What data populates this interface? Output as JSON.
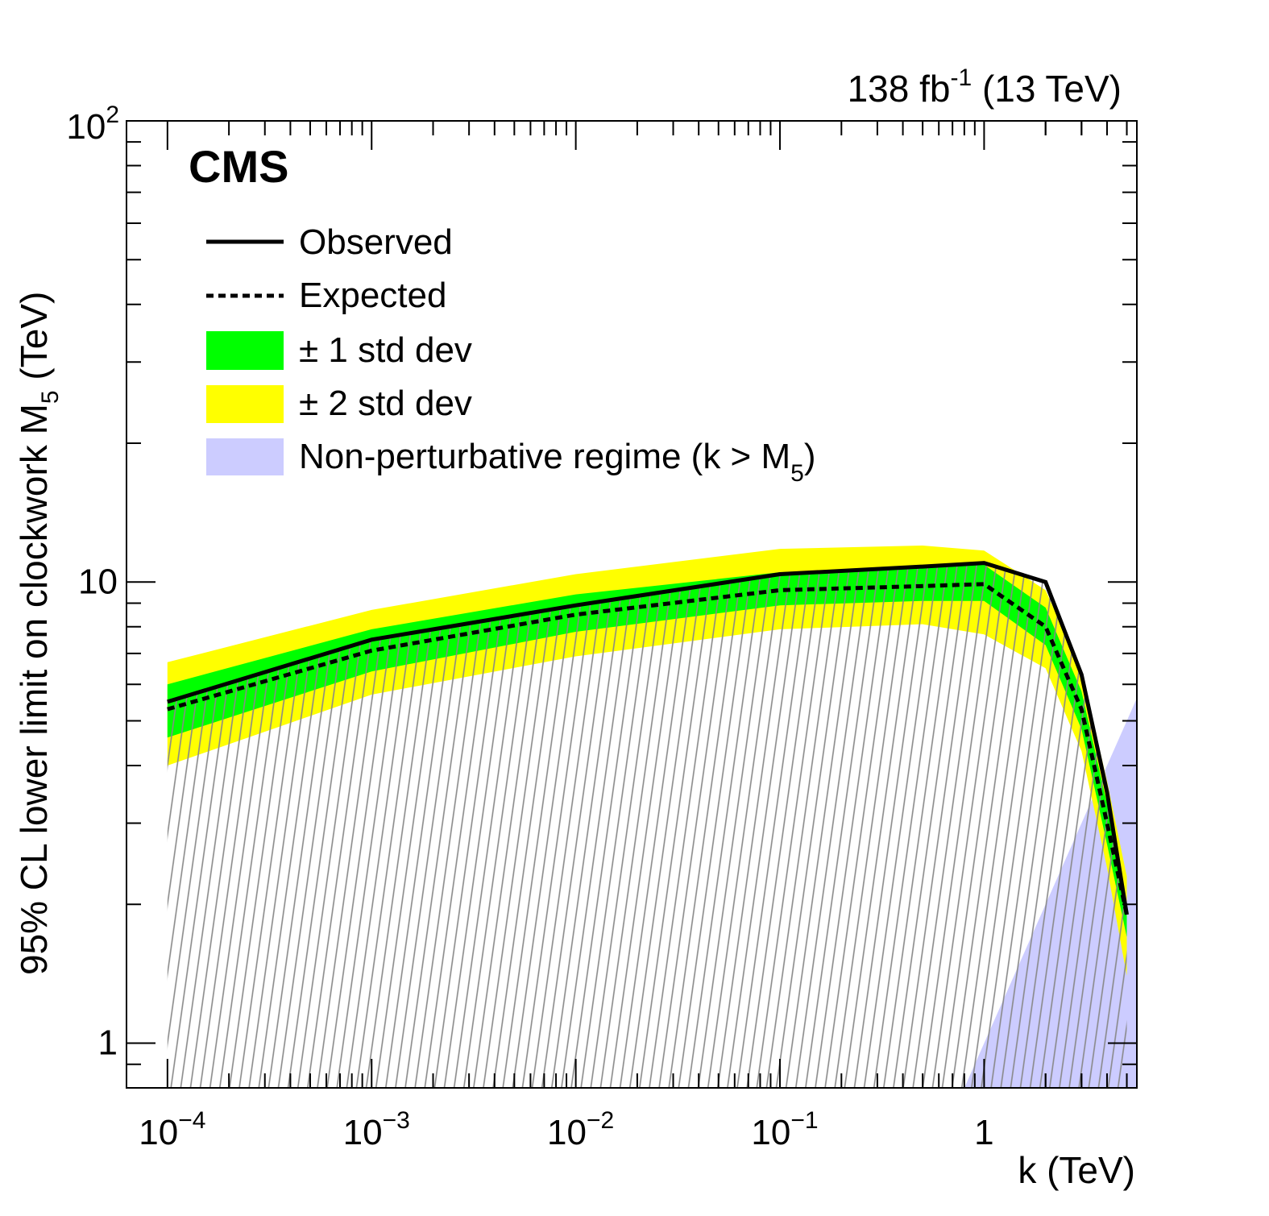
{
  "lumi": {
    "main": "138 fb",
    "sup": "-1",
    "energy": "(13 TeV)"
  },
  "cms_label": "CMS",
  "axes": {
    "xlabel": "k (TeV)",
    "ylabel_main": "95% CL lower limit on clockwork M",
    "ylabel_sub": "5",
    "ylabel_unit": "(TeV)",
    "xticks": [
      {
        "value": 0.0001,
        "base": "10",
        "exp": "−4"
      },
      {
        "value": 0.001,
        "base": "10",
        "exp": "−3"
      },
      {
        "value": 0.01,
        "base": "10",
        "exp": "−2"
      },
      {
        "value": 0.1,
        "base": "10",
        "exp": "−1"
      },
      {
        "value": 1,
        "base": "1",
        "exp": ""
      }
    ],
    "yticks": [
      {
        "value": 1,
        "base": "1",
        "exp": ""
      },
      {
        "value": 10,
        "base": "10",
        "exp": ""
      },
      {
        "value": 100,
        "base": "10",
        "exp": "2"
      }
    ]
  },
  "legend": {
    "observed": "Observed",
    "expected": "Expected",
    "band1": "± 1 std dev",
    "band2": "± 2 std dev",
    "nonpert_main": "Non-perturbative regime (k > M",
    "nonpert_sub": "5",
    "nonpert_close": ")"
  },
  "colors": {
    "band1": "#00ff00",
    "band2": "#ffff00",
    "nonpert": "#ccccff",
    "hatch": "#888888",
    "line": "#000000"
  },
  "chart_data": {
    "type": "line",
    "x_scale": "log",
    "y_scale": "log",
    "xlim": [
      6.3e-05,
      5.6
    ],
    "ylim": [
      0.8,
      100
    ],
    "x": [
      0.0001,
      0.001,
      0.01,
      0.1,
      0.5,
      1,
      2,
      3,
      4,
      5
    ],
    "series": [
      {
        "name": "Observed",
        "values": [
          5.5,
          7.5,
          8.9,
          10.4,
          10.8,
          11.0,
          10.0,
          6.3,
          3.5,
          1.9
        ]
      },
      {
        "name": "Expected",
        "values": [
          5.3,
          7.1,
          8.5,
          9.6,
          9.8,
          9.9,
          8.0,
          5.3,
          3.0,
          1.9
        ]
      },
      {
        "name": "± 1 std dev",
        "lower": [
          4.6,
          6.4,
          7.8,
          8.9,
          9.1,
          9.1,
          7.3,
          4.8,
          2.7,
          1.7
        ],
        "upper": [
          6.0,
          7.9,
          9.4,
          10.5,
          10.8,
          10.9,
          8.8,
          5.8,
          3.3,
          2.0
        ]
      },
      {
        "name": "± 2 std dev",
        "lower": [
          4.0,
          5.7,
          6.9,
          7.9,
          8.1,
          7.7,
          6.5,
          4.3,
          2.4,
          1.4
        ],
        "upper": [
          6.7,
          8.7,
          10.4,
          11.8,
          12.0,
          11.7,
          9.6,
          6.4,
          3.7,
          2.3
        ]
      },
      {
        "name": "Non-perturbative regime (k > M5)",
        "x": [
          0.8,
          5.6
        ],
        "values": [
          0.8,
          5.6
        ]
      }
    ],
    "excluded_region": "below observed limit (hatched)"
  }
}
